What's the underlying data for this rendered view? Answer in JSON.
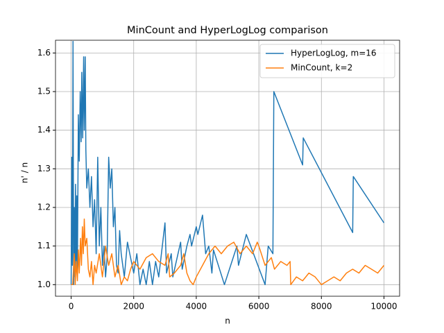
{
  "chart_data": {
    "type": "line",
    "title": "MinCount and HyperLogLog comparison",
    "xlabel": "n",
    "ylabel": "n' / n",
    "xlim": [
      -500,
      10500
    ],
    "ylim": [
      0.97,
      1.633
    ],
    "xticks": [
      0,
      2000,
      4000,
      6000,
      8000,
      10000
    ],
    "yticks": [
      {
        "value": 1,
        "label": "1.0"
      },
      1.1,
      1.2,
      1.3,
      1.4,
      1.5,
      1.6
    ],
    "grid": true,
    "legend": "upper right",
    "series": [
      {
        "name": "HyperLogLog, m=16",
        "color": "#1f77b4",
        "x": [
          0,
          20,
          40,
          60,
          80,
          100,
          120,
          140,
          160,
          180,
          200,
          230,
          260,
          290,
          320,
          340,
          370,
          400,
          420,
          450,
          470,
          500,
          550,
          600,
          650,
          700,
          750,
          800,
          850,
          900,
          950,
          1000,
          1050,
          1100,
          1150,
          1200,
          1250,
          1300,
          1350,
          1400,
          1450,
          1500,
          1550,
          1600,
          1700,
          1800,
          1900,
          2000,
          2100,
          2200,
          2300,
          2400,
          2500,
          2600,
          2700,
          2800,
          3000,
          3050,
          3200,
          3250,
          3500,
          3550,
          3700,
          3800,
          3850,
          4000,
          4050,
          4200,
          4300,
          4400,
          4500,
          4550,
          4900,
          5300,
          5350,
          5600,
          6200,
          6300,
          6450,
          6480,
          7400,
          7420,
          9000,
          9020,
          10000
        ],
        "values": [
          1.0,
          1.33,
          1.05,
          1.63,
          1.0,
          1.2,
          1.02,
          1.26,
          1.05,
          1.23,
          1.02,
          1.44,
          1.32,
          1.5,
          1.37,
          1.55,
          1.38,
          1.59,
          1.4,
          1.59,
          1.35,
          1.25,
          1.3,
          1.2,
          1.28,
          1.15,
          1.22,
          1.08,
          1.33,
          1.1,
          1.2,
          1.05,
          1.1,
          1.02,
          1.07,
          1.33,
          1.25,
          1.3,
          1.15,
          1.2,
          1.05,
          1.03,
          1.14,
          1.08,
          1.02,
          1.11,
          1.07,
          1.03,
          1.08,
          1.0,
          1.04,
          1.0,
          1.06,
          1.0,
          1.06,
          1.02,
          1.16,
          1.03,
          1.08,
          1.02,
          1.11,
          1.04,
          1.1,
          1.13,
          1.1,
          1.15,
          1.13,
          1.18,
          1.08,
          1.1,
          1.03,
          1.09,
          1.0,
          1.1,
          1.05,
          1.13,
          1.0,
          1.1,
          1.08,
          1.5,
          1.31,
          1.38,
          1.135,
          1.28,
          1.16
        ]
      },
      {
        "name": "MinCount, k=2",
        "color": "#ff7f0e",
        "x": [
          0,
          50,
          100,
          130,
          160,
          200,
          230,
          260,
          300,
          330,
          360,
          390,
          420,
          450,
          500,
          550,
          600,
          650,
          700,
          750,
          800,
          900,
          1000,
          1100,
          1200,
          1300,
          1400,
          1500,
          1600,
          1700,
          1800,
          1900,
          2000,
          2200,
          2400,
          2600,
          2800,
          3000,
          3100,
          3150,
          3300,
          3500,
          3600,
          3700,
          3800,
          3900,
          4000,
          4200,
          4400,
          4600,
          4800,
          5000,
          5200,
          5400,
          5600,
          5800,
          5950,
          6000,
          6200,
          6400,
          6500,
          6700,
          6900,
          7000,
          7020,
          7200,
          7400,
          7600,
          7800,
          8000,
          8200,
          8400,
          8600,
          8800,
          9000,
          9200,
          9400,
          9600,
          9800,
          10000
        ],
        "values": [
          1.0,
          1.0,
          1.08,
          1.0,
          1.06,
          1.01,
          1.09,
          1.03,
          1.12,
          1.05,
          1.15,
          1.08,
          1.17,
          1.1,
          1.12,
          1.04,
          1.02,
          1.06,
          1.0,
          1.05,
          1.03,
          1.08,
          1.02,
          1.1,
          1.05,
          1.08,
          1.02,
          1.05,
          1.0,
          1.02,
          1.01,
          1.04,
          1.06,
          1.04,
          1.07,
          1.08,
          1.06,
          1.05,
          1.08,
          1.02,
          1.03,
          1.05,
          1.08,
          1.03,
          1.01,
          1.0,
          1.02,
          1.05,
          1.08,
          1.1,
          1.08,
          1.1,
          1.11,
          1.08,
          1.1,
          1.08,
          1.11,
          1.1,
          1.05,
          1.07,
          1.04,
          1.06,
          1.05,
          1.06,
          1.0,
          1.02,
          1.01,
          1.03,
          1.02,
          1.0,
          1.01,
          1.02,
          1.01,
          1.03,
          1.04,
          1.03,
          1.05,
          1.04,
          1.03,
          1.05
        ]
      }
    ]
  }
}
